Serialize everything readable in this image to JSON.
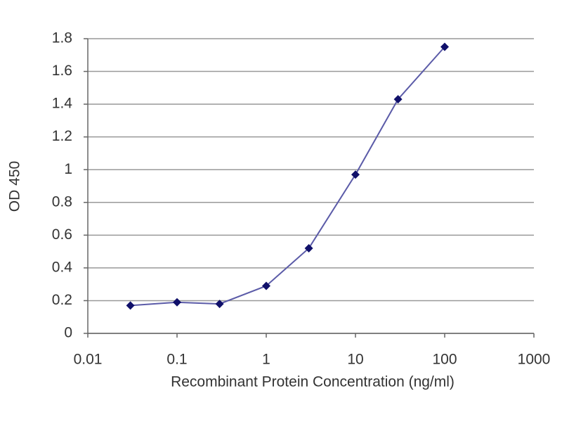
{
  "chart_data": {
    "type": "line",
    "y_label": "OD 450",
    "x_label": "Recombinant Protein Concentration (ng/ml)",
    "x": [
      0.03,
      0.1,
      0.3,
      1,
      3,
      10,
      30,
      100
    ],
    "values": [
      0.17,
      0.19,
      0.18,
      0.29,
      0.52,
      0.97,
      1.43,
      1.75
    ],
    "color": "#5b5ba8",
    "marker_color": "#10106a",
    "xscale": "log",
    "xlim": [
      0.01,
      1000
    ],
    "xticks": [
      0.01,
      0.1,
      1,
      10,
      100,
      1000
    ],
    "ylim": [
      0,
      1.8
    ],
    "yticks": [
      0,
      0.2,
      0.4,
      0.6,
      0.8,
      1,
      1.2,
      1.4,
      1.6,
      1.8
    ],
    "grid": true
  }
}
